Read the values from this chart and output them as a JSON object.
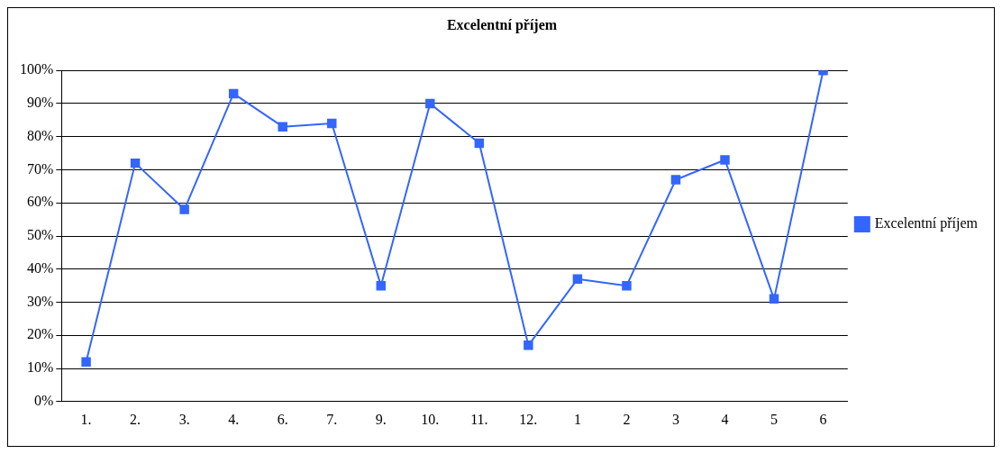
{
  "chart_data": {
    "type": "line",
    "title": "Excelentní příjem",
    "categories": [
      "1.",
      "2.",
      "3.",
      "4.",
      "6.",
      "7.",
      "9.",
      "10.",
      "11.",
      "12.",
      "1",
      "2",
      "3",
      "4",
      "5",
      "6"
    ],
    "series": [
      {
        "name": "Excelentní příjem",
        "color": "#3366ff",
        "values": [
          12,
          72,
          58,
          93,
          83,
          84,
          35,
          90,
          78,
          17,
          37,
          35,
          67,
          73,
          31,
          100
        ]
      }
    ],
    "ylim": [
      0,
      100
    ],
    "yticks": [
      {
        "value": 0,
        "label": "0%"
      },
      {
        "value": 10,
        "label": "10%"
      },
      {
        "value": 20,
        "label": "20%"
      },
      {
        "value": 30,
        "label": "30%"
      },
      {
        "value": 40,
        "label": "40%"
      },
      {
        "value": 50,
        "label": "50%"
      },
      {
        "value": 60,
        "label": "60%"
      },
      {
        "value": 70,
        "label": "70%"
      },
      {
        "value": 80,
        "label": "80%"
      },
      {
        "value": 90,
        "label": "90%"
      },
      {
        "value": 100,
        "label": "100%"
      }
    ],
    "grid": "y",
    "legend": "right",
    "marker": "square",
    "line_style": "solid"
  }
}
